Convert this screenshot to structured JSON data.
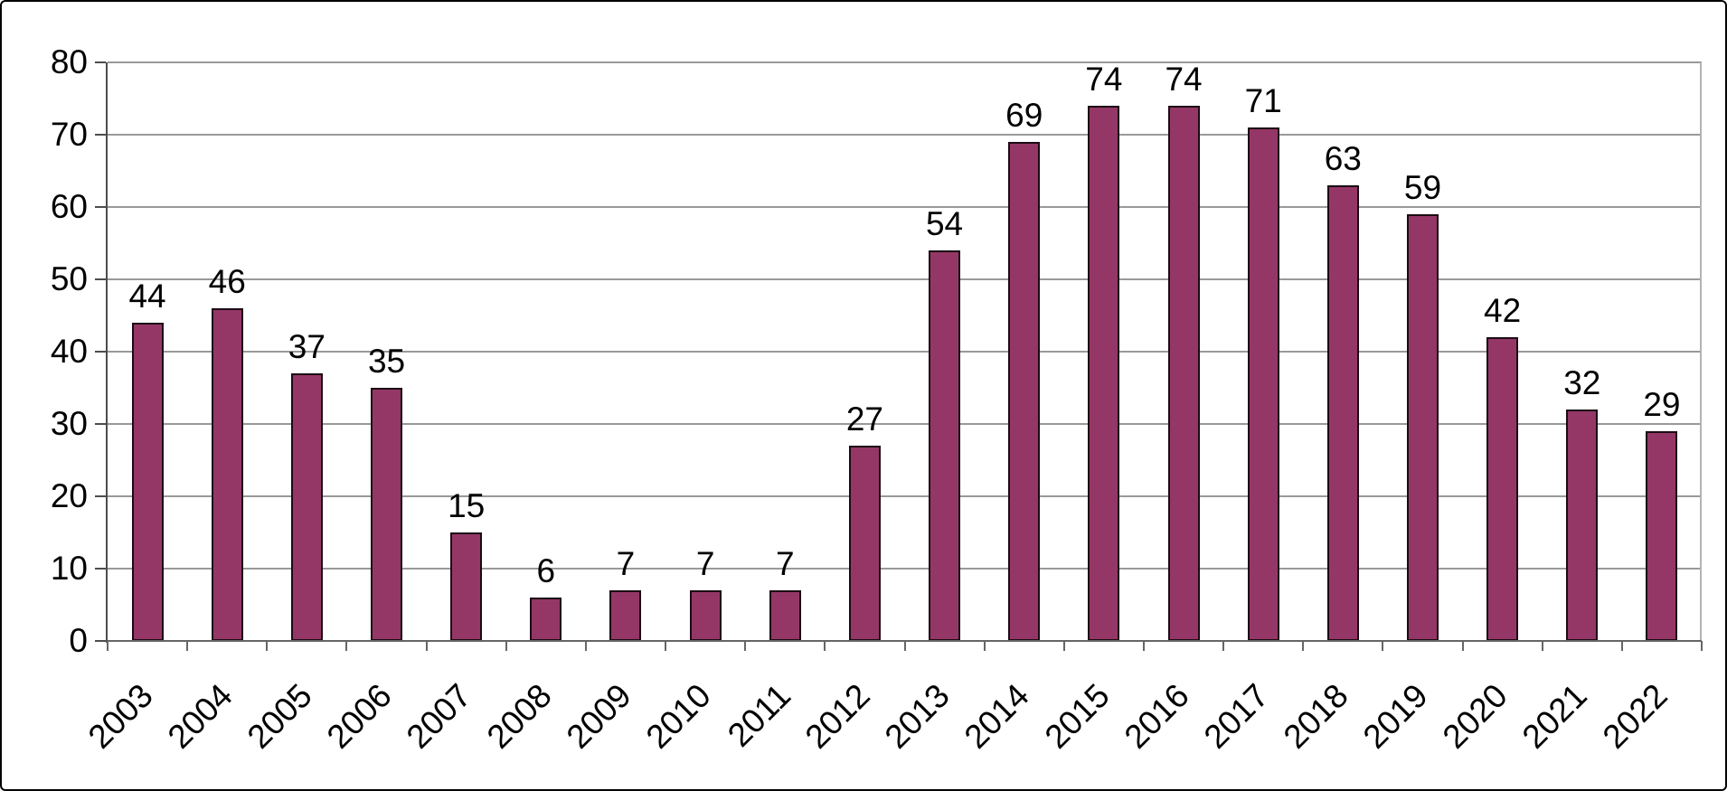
{
  "chart_data": {
    "type": "bar",
    "title": "",
    "xlabel": "",
    "ylabel": "",
    "categories": [
      "2003",
      "2004",
      "2005",
      "2006",
      "2007",
      "2008",
      "2009",
      "2010",
      "2011",
      "2012",
      "2013",
      "2014",
      "2015",
      "2016",
      "2017",
      "2018",
      "2019",
      "2020",
      "2021",
      "2022"
    ],
    "values": [
      44,
      46,
      37,
      35,
      15,
      6,
      7,
      7,
      7,
      27,
      54,
      69,
      74,
      74,
      71,
      63,
      59,
      42,
      32,
      29
    ],
    "ylim": [
      0,
      80
    ],
    "ytick_step": 10,
    "yticks": [
      0,
      10,
      20,
      30,
      40,
      50,
      60,
      70,
      80
    ],
    "grid": true,
    "legend": false,
    "data_labels": true,
    "x_label_rotation_deg": -45
  },
  "colors": {
    "bar_fill": "#943767",
    "bar_border": "#1c0b14",
    "gridline": "#999999",
    "y_axis": "#4d4d4d",
    "x_axis": "#666666",
    "plot_right_border": "#b3b3b3",
    "text": "#000000",
    "frame_border": "#000000",
    "background": "#ffffff"
  }
}
